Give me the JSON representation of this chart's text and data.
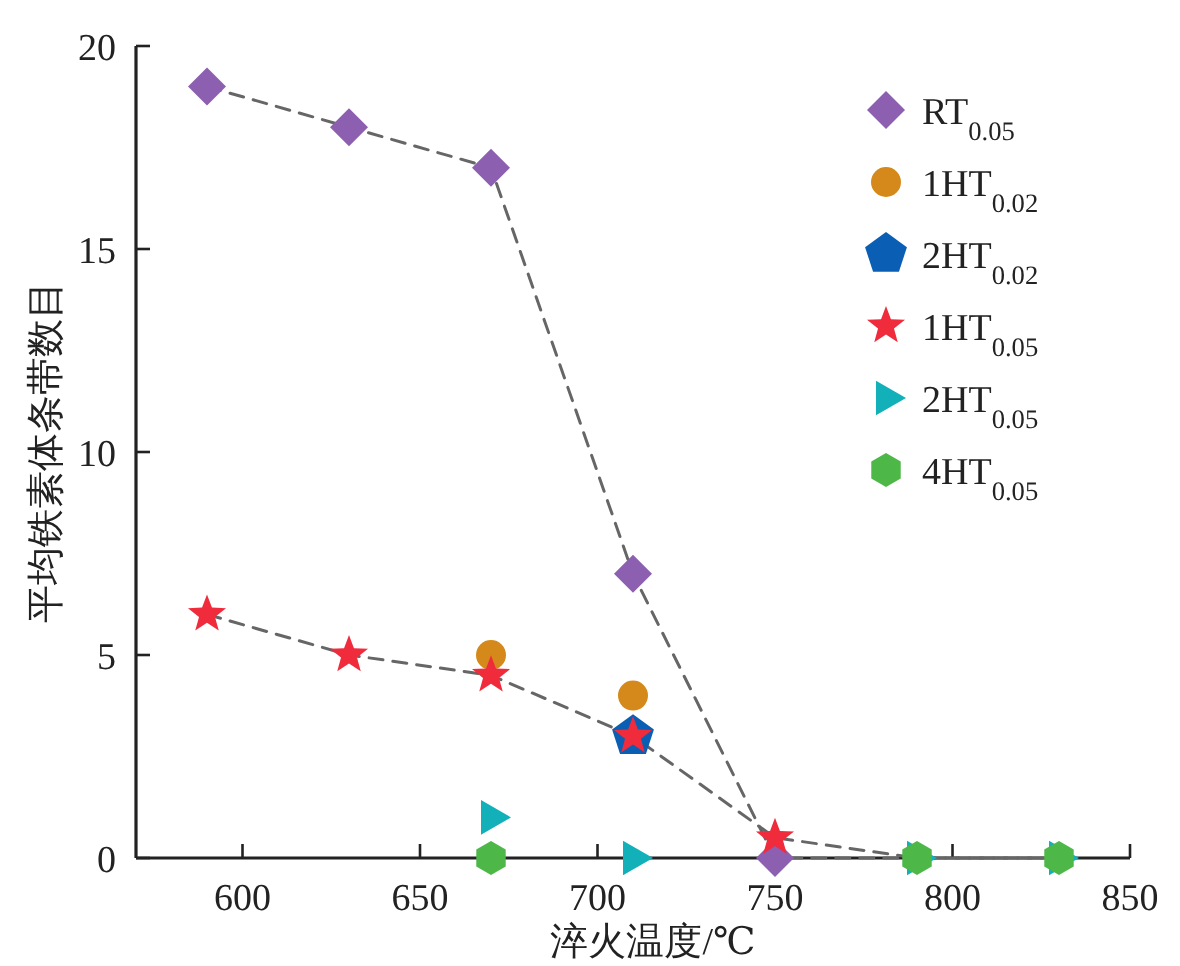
{
  "chart_data": {
    "type": "scatter",
    "xlabel": "淬火温度/℃",
    "ylabel": "平均铁素体条带数目",
    "xlim": [
      570,
      850
    ],
    "xticks": [
      600,
      650,
      700,
      750,
      800,
      850
    ],
    "ylim": [
      0,
      20
    ],
    "yticks": [
      0,
      5,
      10,
      15,
      20
    ],
    "grid": false,
    "legend": "top right",
    "series": [
      {
        "type": "line",
        "x": [
          590,
          630,
          670,
          710,
          750,
          790,
          830
        ],
        "values": [
          19,
          18,
          17,
          7,
          0,
          0,
          0
        ],
        "color": "#666666",
        "line_style": "dashed",
        "marker": "none"
      },
      {
        "type": "line",
        "x": [
          590,
          630,
          670,
          710,
          750,
          790,
          830
        ],
        "values": [
          6,
          5,
          4.5,
          3,
          0.5,
          0,
          0
        ],
        "color": "#666666",
        "line_style": "dashed",
        "marker": "none"
      },
      {
        "name": "RT$_{0.05}$",
        "x": [
          590,
          630,
          670,
          710,
          750
        ],
        "values": [
          19,
          18,
          17,
          7,
          0
        ],
        "color": "#8c5fb0",
        "marker": "diamond"
      },
      {
        "name": "1HT$_{0.02}$",
        "x": [
          670,
          710
        ],
        "values": [
          5,
          4
        ],
        "color": "#d4891a",
        "marker": "circle"
      },
      {
        "name": "2HT$_{0.02}$",
        "x": [
          710
        ],
        "values": [
          3
        ],
        "color": "#0a5fb4"
      },
      {
        "name": "1HT$_{0.05}$",
        "x": [
          590,
          630,
          670,
          710,
          750
        ],
        "values": [
          6,
          5,
          4.5,
          3,
          0.5
        ],
        "color": "#ef2b3c",
        "marker": "star"
      },
      {
        "name": "2HT$_{0.05}$",
        "x": [
          670,
          710,
          790,
          830
        ],
        "values": [
          1,
          0,
          0,
          0
        ],
        "color": "#12b0b8",
        "marker": "triangle"
      },
      {
        "name": "4HT$_{0.05}$",
        "x": [
          670,
          790,
          830
        ],
        "values": [
          0,
          0,
          0
        ],
        "color": "#4db848"
      }
    ]
  }
}
